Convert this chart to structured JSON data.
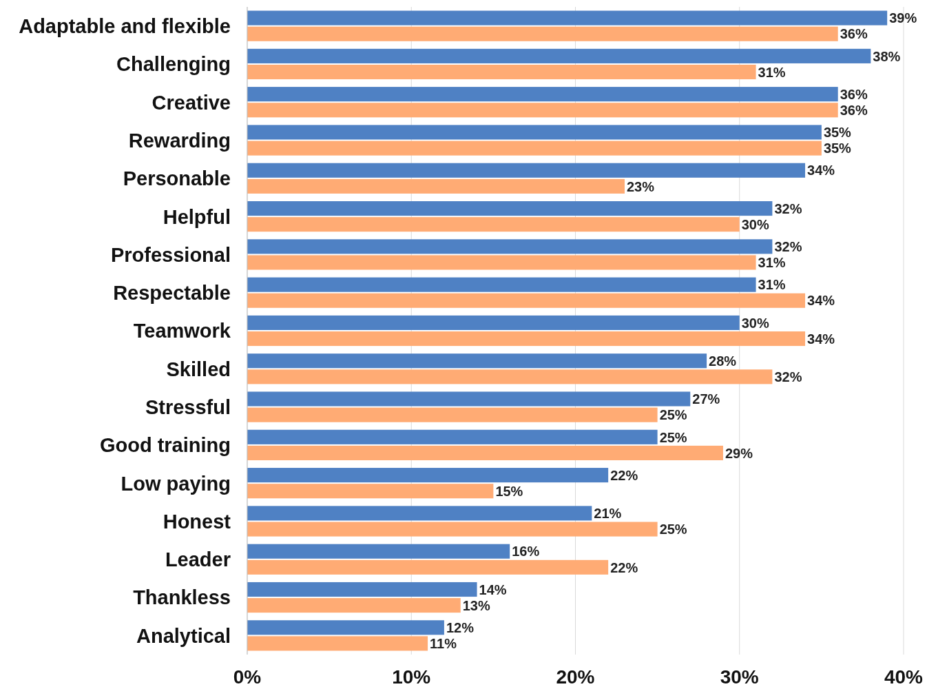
{
  "chart_data": {
    "type": "bar",
    "orientation": "horizontal",
    "categories": [
      "Adaptable and flexible",
      "Challenging",
      "Creative",
      "Rewarding",
      "Personable",
      "Helpful",
      "Professional",
      "Respectable",
      "Teamwork",
      "Skilled",
      "Stressful",
      "Good training",
      "Low paying",
      "Honest",
      "Leader",
      "Thankless",
      "Analytical"
    ],
    "series": [
      {
        "color": "#4f81c4",
        "values": [
          39,
          38,
          36,
          35,
          34,
          32,
          32,
          31,
          30,
          28,
          27,
          25,
          22,
          21,
          16,
          14,
          12
        ],
        "value_labels": [
          "39%",
          "38%",
          "36%",
          "35%",
          "34%",
          "32%",
          "32%",
          "31%",
          "30%",
          "28%",
          "27%",
          "25%",
          "22%",
          "21%",
          "16%",
          "14%",
          "12%"
        ]
      },
      {
        "color": "#ffab74",
        "values": [
          36,
          31,
          36,
          35,
          23,
          30,
          31,
          34,
          34,
          32,
          25,
          29,
          15,
          25,
          22,
          13,
          11
        ],
        "value_labels": [
          "36%",
          "31%",
          "36%",
          "35%",
          "23%",
          "30%",
          "31%",
          "34%",
          "34%",
          "32%",
          "25%",
          "29%",
          "15%",
          "25%",
          "22%",
          "13%",
          "11%"
        ]
      }
    ],
    "xlim": [
      0,
      40
    ],
    "xticks": [
      {
        "value": 0,
        "label": "0%"
      },
      {
        "value": 10,
        "label": "10%"
      },
      {
        "value": 20,
        "label": "20%"
      },
      {
        "value": 30,
        "label": "30%"
      },
      {
        "value": 40,
        "label": "40%"
      }
    ],
    "grid": "x"
  }
}
